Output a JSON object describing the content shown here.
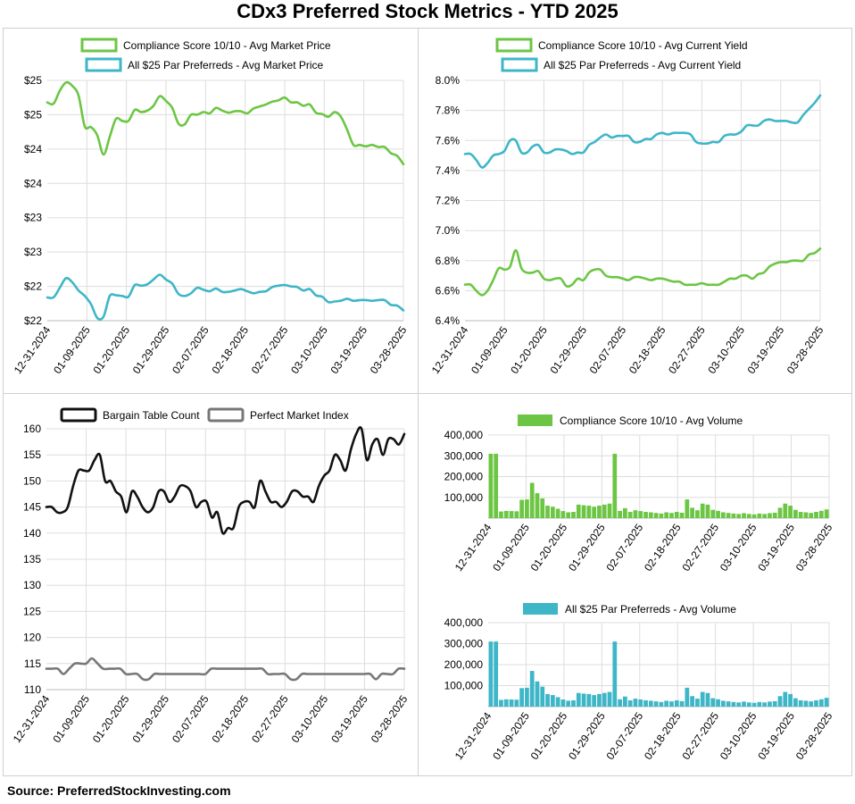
{
  "title": "CDx3 Preferred Stock Metrics - YTD 2025",
  "source": "Source: PreferredStockInvesting.com",
  "colors": {
    "green": "#6cc644",
    "teal": "#3db6c8",
    "black": "#111111",
    "gray": "#777777",
    "grid": "#dddddd"
  },
  "chart_data": [
    {
      "id": "price",
      "type": "line",
      "x_labels": [
        "12-31-2024",
        "01-09-2025",
        "01-20-2025",
        "01-29-2025",
        "02-07-2025",
        "02-18-2025",
        "02-27-2025",
        "03-10-2025",
        "03-19-2025",
        "03-28-2025"
      ],
      "y_ticks": [
        21.5,
        22.0,
        22.5,
        23.0,
        23.5,
        24.0,
        24.5,
        25.0
      ],
      "y_tick_labels": [
        "$22",
        "$22",
        "$23",
        "$23",
        "$24",
        "$24",
        "$25",
        "$25"
      ],
      "ylim": [
        21.5,
        25.0
      ],
      "series": [
        {
          "name": "Compliance Score 10/10 - Avg Market Price",
          "color": "green",
          "values": [
            24.68,
            24.66,
            24.85,
            24.97,
            24.92,
            24.78,
            24.33,
            24.32,
            24.2,
            23.92,
            24.18,
            24.44,
            24.41,
            24.41,
            24.57,
            24.54,
            24.56,
            24.63,
            24.77,
            24.7,
            24.6,
            24.37,
            24.36,
            24.5,
            24.5,
            24.54,
            24.52,
            24.6,
            24.56,
            24.53,
            24.55,
            24.55,
            24.52,
            24.59,
            24.62,
            24.65,
            24.69,
            24.71,
            24.75,
            24.68,
            24.68,
            24.63,
            24.65,
            24.53,
            24.51,
            24.47,
            24.54,
            24.47,
            24.28,
            24.06,
            24.06,
            24.04,
            24.06,
            24.03,
            24.03,
            23.94,
            23.9,
            23.78
          ]
        },
        {
          "name": "All $25 Par Preferreds - Avg Market Price",
          "color": "teal",
          "values": [
            21.84,
            21.84,
            21.98,
            22.12,
            22.06,
            21.94,
            21.86,
            21.74,
            21.54,
            21.56,
            21.86,
            21.87,
            21.86,
            21.85,
            22.02,
            22.01,
            22.03,
            22.1,
            22.17,
            22.1,
            22.04,
            21.89,
            21.86,
            21.9,
            21.98,
            21.95,
            21.93,
            21.97,
            21.92,
            21.92,
            21.94,
            21.96,
            21.93,
            21.9,
            21.92,
            21.93,
            21.99,
            22.01,
            22.02,
            22.0,
            21.99,
            21.94,
            21.96,
            21.87,
            21.85,
            21.77,
            21.78,
            21.79,
            21.82,
            21.79,
            21.8,
            21.8,
            21.79,
            21.8,
            21.8,
            21.73,
            21.72,
            21.65
          ]
        }
      ]
    },
    {
      "id": "yield",
      "type": "line",
      "x_labels": [
        "12-31-2024",
        "01-09-2025",
        "01-20-2025",
        "01-29-2025",
        "02-07-2025",
        "02-18-2025",
        "02-27-2025",
        "03-10-2025",
        "03-19-2025",
        "03-28-2025"
      ],
      "y_ticks": [
        6.4,
        6.6,
        6.8,
        7.0,
        7.2,
        7.4,
        7.6,
        7.8,
        8.0
      ],
      "y_tick_labels": [
        "6.4%",
        "6.6%",
        "6.8%",
        "7.0%",
        "7.2%",
        "7.4%",
        "7.6%",
        "7.8%",
        "8.0%"
      ],
      "ylim": [
        6.4,
        8.0
      ],
      "series": [
        {
          "name": "Compliance Score 10/10 - Avg Current Yield",
          "color": "green",
          "values": [
            6.64,
            6.64,
            6.6,
            6.57,
            6.6,
            6.67,
            6.75,
            6.74,
            6.76,
            6.87,
            6.75,
            6.72,
            6.72,
            6.73,
            6.68,
            6.67,
            6.68,
            6.68,
            6.63,
            6.64,
            6.68,
            6.67,
            6.72,
            6.74,
            6.74,
            6.7,
            6.69,
            6.69,
            6.68,
            6.67,
            6.69,
            6.69,
            6.68,
            6.67,
            6.68,
            6.68,
            6.67,
            6.66,
            6.66,
            6.64,
            6.64,
            6.64,
            6.65,
            6.64,
            6.64,
            6.64,
            6.66,
            6.68,
            6.68,
            6.7,
            6.7,
            6.68,
            6.71,
            6.72,
            6.76,
            6.78,
            6.79,
            6.79,
            6.8,
            6.8,
            6.8,
            6.84,
            6.85,
            6.88
          ]
        },
        {
          "name": "All $25 Par Preferreds - Avg Current Yield",
          "color": "teal",
          "values": [
            7.51,
            7.51,
            7.47,
            7.42,
            7.45,
            7.5,
            7.51,
            7.53,
            7.6,
            7.6,
            7.52,
            7.52,
            7.56,
            7.57,
            7.52,
            7.52,
            7.54,
            7.54,
            7.53,
            7.51,
            7.52,
            7.52,
            7.57,
            7.59,
            7.62,
            7.64,
            7.62,
            7.63,
            7.63,
            7.63,
            7.59,
            7.59,
            7.61,
            7.61,
            7.64,
            7.65,
            7.64,
            7.65,
            7.65,
            7.65,
            7.64,
            7.59,
            7.58,
            7.58,
            7.59,
            7.59,
            7.63,
            7.64,
            7.64,
            7.66,
            7.7,
            7.7,
            7.7,
            7.73,
            7.74,
            7.73,
            7.73,
            7.73,
            7.72,
            7.72,
            7.77,
            7.81,
            7.85,
            7.9
          ]
        }
      ]
    },
    {
      "id": "bargain",
      "type": "line",
      "x_labels": [
        "12-31-2024",
        "01-09-2025",
        "01-20-2025",
        "01-29-2025",
        "02-07-2025",
        "02-18-2025",
        "02-27-2025",
        "03-10-2025",
        "03-19-2025",
        "03-28-2025"
      ],
      "y_ticks": [
        110,
        115,
        120,
        125,
        130,
        135,
        140,
        145,
        150,
        155,
        160
      ],
      "y_tick_labels": [
        "110",
        "115",
        "120",
        "125",
        "130",
        "135",
        "140",
        "145",
        "150",
        "155",
        "160"
      ],
      "ylim": [
        110,
        160
      ],
      "series": [
        {
          "name": "Bargain Table Count",
          "color": "black",
          "values": [
            145,
            145,
            144,
            144,
            145,
            149,
            152,
            152,
            152,
            154,
            155,
            150,
            150,
            148,
            147,
            144,
            148,
            147,
            145,
            144,
            145,
            148,
            148,
            146,
            147,
            149,
            149,
            148,
            145,
            146,
            146,
            143,
            144,
            140,
            141,
            141,
            145,
            146,
            146,
            145,
            150,
            148,
            146,
            146,
            145,
            146,
            148,
            148,
            147,
            147,
            146,
            149,
            151,
            152,
            155,
            154,
            152,
            156,
            159,
            160,
            154,
            157,
            158,
            155,
            158,
            158,
            157,
            159
          ]
        },
        {
          "name": "Perfect Market Index",
          "color": "gray",
          "values": [
            114,
            114,
            114,
            113,
            114,
            115,
            115,
            115,
            116,
            115,
            114,
            114,
            114,
            114,
            113,
            113,
            113,
            112,
            112,
            113,
            113,
            113,
            113,
            113,
            113,
            113,
            113,
            113,
            113,
            114,
            114,
            114,
            114,
            114,
            114,
            114,
            114,
            114,
            114,
            113,
            113,
            113,
            113,
            112,
            112,
            113,
            113,
            113,
            113,
            113,
            113,
            113,
            113,
            113,
            113,
            113,
            113,
            113,
            112,
            113,
            113,
            113,
            114,
            114
          ]
        }
      ]
    },
    {
      "id": "volume_cs",
      "type": "bar",
      "x_labels": [
        "12-31-2024",
        "01-09-2025",
        "01-20-2025",
        "01-29-2025",
        "02-07-2025",
        "02-18-2025",
        "02-27-2025",
        "03-10-2025",
        "03-19-2025",
        "03-28-2025"
      ],
      "y_ticks": [
        0,
        100000,
        200000,
        300000,
        400000
      ],
      "y_tick_labels": [
        "",
        "100,000",
        "200,000",
        "300,000",
        "400,000"
      ],
      "ylim": [
        0,
        400000
      ],
      "series": [
        {
          "name": "Compliance Score 10/10 - Avg Volume",
          "color": "green",
          "values": [
            310000,
            310000,
            32000,
            35000,
            34000,
            33000,
            88000,
            90000,
            170000,
            120000,
            95000,
            60000,
            55000,
            45000,
            34000,
            28000,
            30000,
            65000,
            62000,
            60000,
            55000,
            60000,
            65000,
            70000,
            310000,
            35000,
            48000,
            30000,
            38000,
            34000,
            30000,
            28000,
            25000,
            22000,
            28000,
            25000,
            30000,
            26000,
            90000,
            50000,
            38000,
            70000,
            65000,
            40000,
            35000,
            28000,
            25000,
            22000,
            20000,
            24000,
            20000,
            18000,
            22000,
            20000,
            24000,
            26000,
            50000,
            70000,
            60000,
            40000,
            30000,
            28000,
            25000,
            30000,
            35000,
            42000
          ]
        }
      ]
    },
    {
      "id": "volume_all",
      "type": "bar",
      "x_labels": [
        "12-31-2024",
        "01-09-2025",
        "01-20-2025",
        "01-29-2025",
        "02-07-2025",
        "02-18-2025",
        "02-27-2025",
        "03-10-2025",
        "03-19-2025",
        "03-28-2025"
      ],
      "y_ticks": [
        0,
        100000,
        200000,
        300000,
        400000
      ],
      "y_tick_labels": [
        "",
        "100,000",
        "200,000",
        "300,000",
        "400,000"
      ],
      "ylim": [
        0,
        400000
      ],
      "series": [
        {
          "name": "All $25 Par Preferreds - Avg Volume",
          "color": "teal",
          "values": [
            310000,
            310000,
            32000,
            35000,
            34000,
            33000,
            88000,
            90000,
            170000,
            120000,
            95000,
            60000,
            55000,
            45000,
            34000,
            28000,
            30000,
            65000,
            62000,
            60000,
            55000,
            60000,
            65000,
            70000,
            310000,
            35000,
            48000,
            30000,
            38000,
            34000,
            30000,
            28000,
            25000,
            22000,
            28000,
            25000,
            30000,
            26000,
            90000,
            50000,
            38000,
            70000,
            65000,
            40000,
            35000,
            28000,
            25000,
            22000,
            20000,
            24000,
            20000,
            18000,
            22000,
            20000,
            24000,
            26000,
            50000,
            70000,
            60000,
            40000,
            30000,
            28000,
            25000,
            30000,
            35000,
            42000
          ]
        }
      ]
    }
  ]
}
